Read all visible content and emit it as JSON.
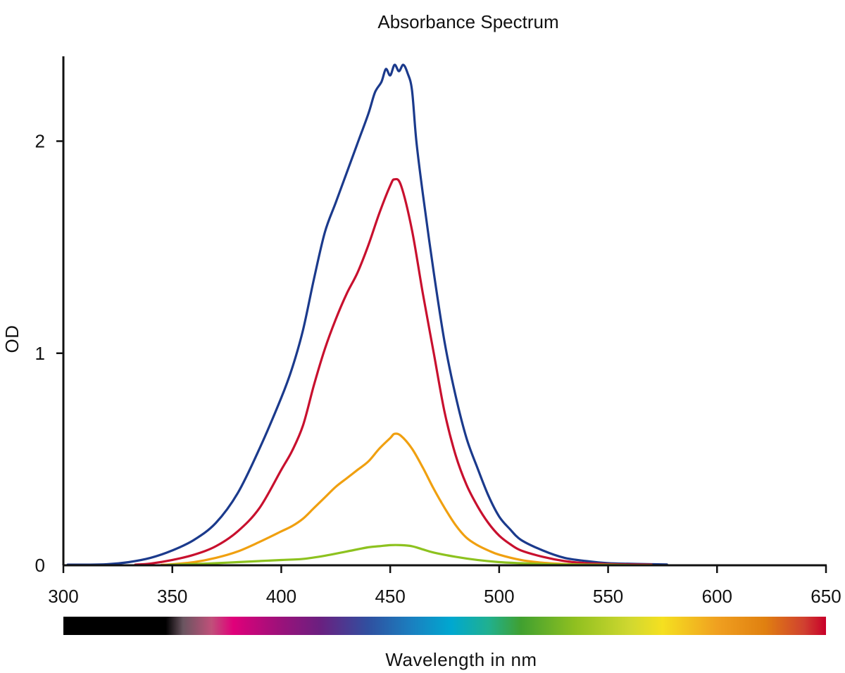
{
  "chart_data": {
    "type": "line",
    "title": "Absorbance Spectrum",
    "xlabel": "Wavelength in nm",
    "ylabel": "OD",
    "xlim": [
      300,
      650
    ],
    "ylim": [
      0,
      2.4
    ],
    "x_ticks": [
      300,
      350,
      400,
      450,
      500,
      550,
      600,
      650
    ],
    "y_ticks": [
      0,
      1,
      2
    ],
    "grid": false,
    "legend": "none",
    "spectrum_bar": {
      "range": [
        300,
        650
      ],
      "stops": [
        {
          "nm": 300,
          "color": "#000000"
        },
        {
          "nm": 347,
          "color": "#000000"
        },
        {
          "nm": 355,
          "color": "#6a5560"
        },
        {
          "nm": 368,
          "color": "#c0507a"
        },
        {
          "nm": 378,
          "color": "#e0007a"
        },
        {
          "nm": 398,
          "color": "#a0107a"
        },
        {
          "nm": 418,
          "color": "#6a2080"
        },
        {
          "nm": 440,
          "color": "#3050a0"
        },
        {
          "nm": 460,
          "color": "#1a80c0"
        },
        {
          "nm": 478,
          "color": "#00a8d0"
        },
        {
          "nm": 495,
          "color": "#20b090"
        },
        {
          "nm": 510,
          "color": "#40a030"
        },
        {
          "nm": 535,
          "color": "#90c020"
        },
        {
          "nm": 560,
          "color": "#d0d830"
        },
        {
          "nm": 575,
          "color": "#f5e020"
        },
        {
          "nm": 600,
          "color": "#f0a020"
        },
        {
          "nm": 622,
          "color": "#e08010"
        },
        {
          "nm": 640,
          "color": "#d04030"
        },
        {
          "nm": 650,
          "color": "#c8002a"
        }
      ]
    },
    "series": [
      {
        "color": "#1b3a8c",
        "x": [
          302,
          310,
          320,
          330,
          340,
          350,
          360,
          370,
          380,
          390,
          400,
          405,
          410,
          415,
          420,
          425,
          430,
          435,
          440,
          443,
          446,
          448,
          450,
          452,
          454,
          456,
          458,
          460,
          462,
          465,
          470,
          475,
          480,
          485,
          490,
          495,
          500,
          505,
          510,
          520,
          530,
          540,
          550,
          560,
          570,
          577
        ],
        "y": [
          0.003,
          0.003,
          0.005,
          0.015,
          0.035,
          0.07,
          0.12,
          0.2,
          0.34,
          0.55,
          0.79,
          0.93,
          1.11,
          1.35,
          1.57,
          1.71,
          1.85,
          1.99,
          2.13,
          2.23,
          2.28,
          2.34,
          2.31,
          2.36,
          2.33,
          2.36,
          2.32,
          2.24,
          2.0,
          1.75,
          1.38,
          1.05,
          0.8,
          0.6,
          0.46,
          0.33,
          0.23,
          0.17,
          0.12,
          0.07,
          0.035,
          0.02,
          0.01,
          0.007,
          0.005,
          0.004
        ]
      },
      {
        "color": "#c8102e",
        "x": [
          333,
          340,
          350,
          360,
          370,
          380,
          390,
          400,
          405,
          410,
          415,
          420,
          425,
          430,
          435,
          440,
          445,
          450,
          452,
          455,
          460,
          465,
          470,
          475,
          480,
          485,
          490,
          495,
          500,
          505,
          510,
          520,
          530,
          540,
          550,
          560,
          570
        ],
        "y": [
          0.003,
          0.008,
          0.025,
          0.05,
          0.09,
          0.16,
          0.27,
          0.45,
          0.54,
          0.66,
          0.85,
          1.02,
          1.16,
          1.28,
          1.38,
          1.51,
          1.66,
          1.79,
          1.82,
          1.79,
          1.58,
          1.28,
          1.0,
          0.72,
          0.52,
          0.38,
          0.28,
          0.2,
          0.14,
          0.1,
          0.07,
          0.04,
          0.02,
          0.01,
          0.006,
          0.004,
          0.003
        ]
      },
      {
        "color": "#f0a010",
        "x": [
          345,
          350,
          360,
          370,
          380,
          390,
          400,
          405,
          410,
          415,
          420,
          425,
          430,
          435,
          440,
          445,
          450,
          452,
          455,
          460,
          465,
          470,
          475,
          480,
          485,
          490,
          495,
          500,
          510,
          520,
          530,
          540,
          550,
          560,
          570
        ],
        "y": [
          0.002,
          0.005,
          0.015,
          0.035,
          0.065,
          0.11,
          0.16,
          0.185,
          0.22,
          0.27,
          0.32,
          0.37,
          0.41,
          0.45,
          0.49,
          0.55,
          0.6,
          0.62,
          0.61,
          0.55,
          0.46,
          0.36,
          0.27,
          0.19,
          0.13,
          0.095,
          0.07,
          0.05,
          0.025,
          0.012,
          0.006,
          0.003,
          0.002,
          0.001,
          0.001
        ]
      },
      {
        "color": "#8dc21f",
        "x": [
          348,
          360,
          370,
          380,
          390,
          400,
          410,
          420,
          430,
          440,
          445,
          450,
          455,
          460,
          465,
          470,
          480,
          490,
          500,
          510,
          520,
          530,
          540,
          550,
          560
        ],
        "y": [
          0.002,
          0.006,
          0.01,
          0.015,
          0.02,
          0.025,
          0.03,
          0.045,
          0.065,
          0.085,
          0.09,
          0.095,
          0.095,
          0.09,
          0.075,
          0.06,
          0.04,
          0.025,
          0.015,
          0.01,
          0.006,
          0.004,
          0.003,
          0.002,
          0.001
        ]
      }
    ]
  }
}
